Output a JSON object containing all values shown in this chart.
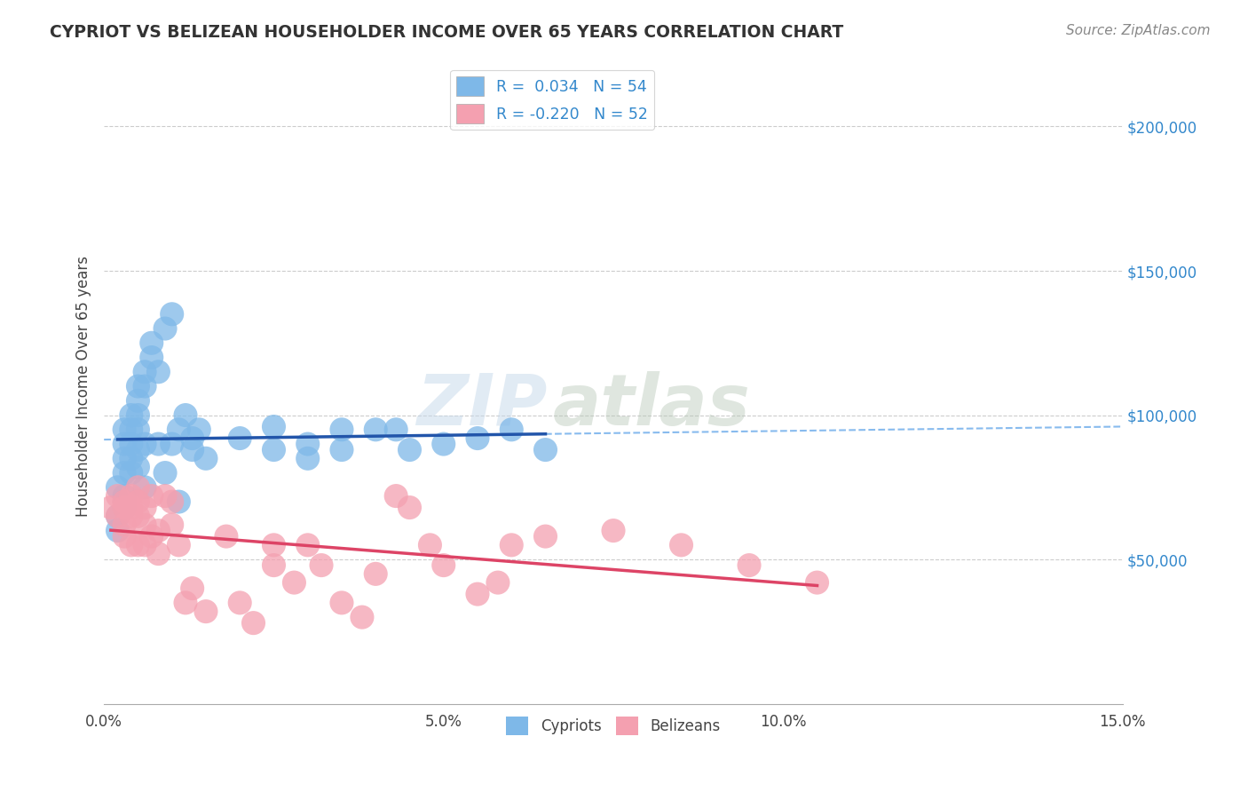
{
  "title": "CYPRIOT VS BELIZEAN HOUSEHOLDER INCOME OVER 65 YEARS CORRELATION CHART",
  "source_text": "Source: ZipAtlas.com",
  "ylabel": "Householder Income Over 65 years",
  "xlim": [
    0.0,
    0.15
  ],
  "ylim": [
    0,
    220000
  ],
  "xticks": [
    0.0,
    0.05,
    0.1,
    0.15
  ],
  "xticklabels": [
    "0.0%",
    "5.0%",
    "10.0%",
    "15.0%"
  ],
  "ytick_positions": [
    50000,
    100000,
    150000,
    200000
  ],
  "ytick_labels": [
    "$50,000",
    "$100,000",
    "$150,000",
    "$200,000"
  ],
  "cypriot_color": "#7eb8e8",
  "belizean_color": "#f4a0b0",
  "cypriot_line_color": "#2255aa",
  "belizean_line_color": "#dd4466",
  "dashed_line_color": "#88bbee",
  "legend_r1": "R =  0.034   N = 54",
  "legend_r2": "R = -0.220   N = 52",
  "watermark_zip": "ZIP",
  "watermark_atlas": "atlas",
  "background_color": "#ffffff",
  "grid_color": "#cccccc",
  "cypriot_x": [
    0.002,
    0.002,
    0.002,
    0.003,
    0.003,
    0.003,
    0.003,
    0.003,
    0.003,
    0.003,
    0.004,
    0.004,
    0.004,
    0.004,
    0.004,
    0.005,
    0.005,
    0.005,
    0.005,
    0.005,
    0.005,
    0.006,
    0.006,
    0.006,
    0.006,
    0.007,
    0.007,
    0.008,
    0.008,
    0.009,
    0.009,
    0.01,
    0.01,
    0.011,
    0.011,
    0.012,
    0.013,
    0.013,
    0.014,
    0.015,
    0.02,
    0.025,
    0.025,
    0.03,
    0.03,
    0.035,
    0.035,
    0.04,
    0.043,
    0.045,
    0.05,
    0.055,
    0.06,
    0.065
  ],
  "cypriot_y": [
    65000,
    60000,
    75000,
    70000,
    80000,
    72000,
    68000,
    90000,
    85000,
    95000,
    80000,
    85000,
    90000,
    95000,
    100000,
    105000,
    100000,
    110000,
    95000,
    88000,
    82000,
    115000,
    110000,
    90000,
    75000,
    120000,
    125000,
    115000,
    90000,
    130000,
    80000,
    135000,
    90000,
    95000,
    70000,
    100000,
    88000,
    92000,
    95000,
    85000,
    92000,
    88000,
    96000,
    90000,
    85000,
    95000,
    88000,
    95000,
    95000,
    88000,
    90000,
    92000,
    95000,
    88000
  ],
  "belizean_x": [
    0.001,
    0.002,
    0.002,
    0.003,
    0.003,
    0.003,
    0.003,
    0.004,
    0.004,
    0.004,
    0.004,
    0.005,
    0.005,
    0.005,
    0.005,
    0.006,
    0.006,
    0.006,
    0.007,
    0.007,
    0.008,
    0.008,
    0.009,
    0.01,
    0.01,
    0.011,
    0.012,
    0.013,
    0.015,
    0.018,
    0.02,
    0.022,
    0.025,
    0.025,
    0.028,
    0.03,
    0.032,
    0.035,
    0.038,
    0.04,
    0.043,
    0.045,
    0.048,
    0.05,
    0.055,
    0.058,
    0.06,
    0.065,
    0.075,
    0.085,
    0.095,
    0.105
  ],
  "belizean_y": [
    68000,
    65000,
    72000,
    70000,
    68000,
    62000,
    58000,
    72000,
    68000,
    65000,
    55000,
    75000,
    70000,
    65000,
    55000,
    68000,
    62000,
    55000,
    72000,
    58000,
    60000,
    52000,
    72000,
    70000,
    62000,
    55000,
    35000,
    40000,
    32000,
    58000,
    35000,
    28000,
    55000,
    48000,
    42000,
    55000,
    48000,
    35000,
    30000,
    45000,
    72000,
    68000,
    55000,
    48000,
    38000,
    42000,
    55000,
    58000,
    60000,
    55000,
    48000,
    42000
  ]
}
